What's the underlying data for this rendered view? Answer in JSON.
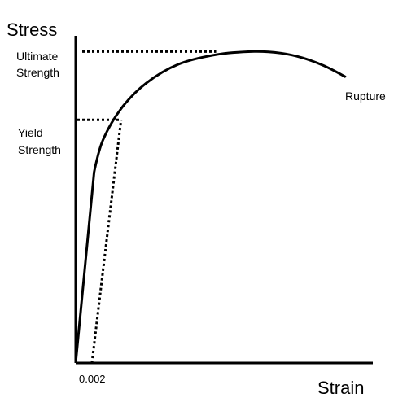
{
  "chart_data": {
    "type": "line",
    "ylabel": "Stress",
    "xlabel": "Strain",
    "series": [
      {
        "x": [
          0,
          0.0017,
          0.0025,
          0.0042,
          0.0065,
          0.0095,
          0.013,
          0.0165,
          0.019,
          0.021,
          0.023,
          0.025
        ],
        "y": [
          0,
          60,
          70,
          80,
          88,
          94,
          97,
          98,
          97.5,
          96,
          93.5,
          90
        ]
      }
    ],
    "xlim": [
      0,
      0.0275
    ],
    "ylim": [
      0,
      105
    ],
    "offset_line": {
      "x": [
        0.0015,
        0.0042
      ],
      "y": [
        0,
        76.5
      ]
    },
    "ticks_x": [
      {
        "value": 0.0015,
        "label": "0.002"
      }
    ],
    "annotations": {
      "ultimate": {
        "lines": [
          "Ultimate",
          "Strength"
        ],
        "x": 0.013,
        "y": 98
      },
      "yield": {
        "lines": [
          "Yield",
          "Strength"
        ],
        "x": 0.0042,
        "y": 76.5
      },
      "rupture": {
        "label": "Rupture",
        "x": 0.025,
        "y": 90
      }
    },
    "grid": false,
    "legend": "none",
    "colors": {
      "axis": "#000000",
      "curve": "#000000",
      "dotted": "#000000",
      "background": "#ffffff"
    }
  }
}
